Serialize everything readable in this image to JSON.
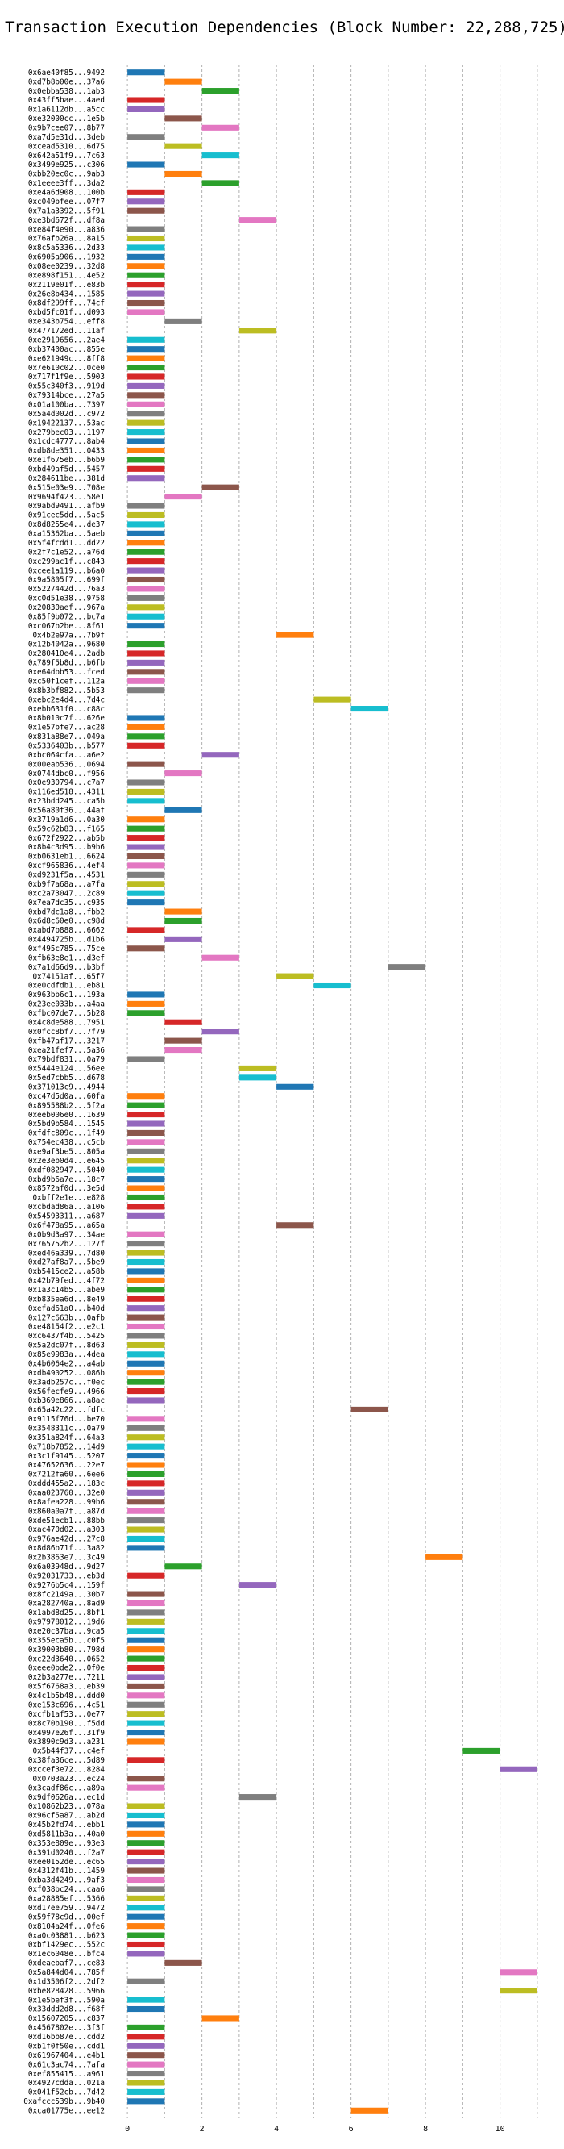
{
  "chart_data": {
    "type": "bar",
    "orientation": "horizontal",
    "title": "Transaction Execution Dependencies (Block Number: 22,288,725)",
    "xlabel": "",
    "ylabel": "",
    "xlim": [
      -0.5,
      11.5
    ],
    "xticks": [
      0,
      2,
      4,
      6,
      8,
      10
    ],
    "grid": true,
    "palette": [
      "#1f77b4",
      "#ff7f0e",
      "#2ca02c",
      "#d62728",
      "#9467bd",
      "#8c564b",
      "#e377c2",
      "#7f7f7f",
      "#bcbd22",
      "#17becf"
    ],
    "bar_width": 1,
    "transactions": [
      {
        "tx": "0x6ae40f85...9492",
        "start": 0
      },
      {
        "tx": "0xd7b8b00e...37a6",
        "start": 1
      },
      {
        "tx": "0x0ebba538...1ab3",
        "start": 2
      },
      {
        "tx": "0x43ff5bae...4aed",
        "start": 0
      },
      {
        "tx": "0x1a6112db...a5cc",
        "start": 0
      },
      {
        "tx": "0xe32000cc...1e5b",
        "start": 1
      },
      {
        "tx": "0x9b7cee07...8b77",
        "start": 2
      },
      {
        "tx": "0xa7d5e31d...3deb",
        "start": 0
      },
      {
        "tx": "0xcead5310...6d75",
        "start": 1
      },
      {
        "tx": "0x642a51f9...7c63",
        "start": 2
      },
      {
        "tx": "0x3499e925...c306",
        "start": 0
      },
      {
        "tx": "0xbb20ec0c...9ab3",
        "start": 1
      },
      {
        "tx": "0x1eeee3ff...3da2",
        "start": 2
      },
      {
        "tx": "0xe4a6d908...100b",
        "start": 0
      },
      {
        "tx": "0xc049bfee...07f7",
        "start": 0
      },
      {
        "tx": "0x7a1a3392...5f91",
        "start": 0
      },
      {
        "tx": "0xe3bd672f...df8a",
        "start": 3
      },
      {
        "tx": "0xe84f4e90...a836",
        "start": 0
      },
      {
        "tx": "0x76afb26a...8a15",
        "start": 0
      },
      {
        "tx": "0x8c5a5336...2d33",
        "start": 0
      },
      {
        "tx": "0x6905a906...1932",
        "start": 0
      },
      {
        "tx": "0x08ee0239...32d8",
        "start": 0
      },
      {
        "tx": "0xe898f151...4e52",
        "start": 0
      },
      {
        "tx": "0x2119e01f...e83b",
        "start": 0
      },
      {
        "tx": "0x26e8b434...1585",
        "start": 0
      },
      {
        "tx": "0x8df299ff...74cf",
        "start": 0
      },
      {
        "tx": "0xbd5fc01f...d093",
        "start": 0
      },
      {
        "tx": "0xe343b754...eff8",
        "start": 1
      },
      {
        "tx": "0x477172ed...11af",
        "start": 3
      },
      {
        "tx": "0xe2919656...2ae4",
        "start": 0
      },
      {
        "tx": "0xb37400ac...855e",
        "start": 0
      },
      {
        "tx": "0xe621949c...8ff8",
        "start": 0
      },
      {
        "tx": "0x7e610c02...0ce0",
        "start": 0
      },
      {
        "tx": "0x717f1f9e...5903",
        "start": 0
      },
      {
        "tx": "0x55c340f3...919d",
        "start": 0
      },
      {
        "tx": "0x79314bce...27a5",
        "start": 0
      },
      {
        "tx": "0x01a100ba...7397",
        "start": 0
      },
      {
        "tx": "0x5a4d002d...c972",
        "start": 0
      },
      {
        "tx": "0x19422137...53ac",
        "start": 0
      },
      {
        "tx": "0x279bec03...1197",
        "start": 0
      },
      {
        "tx": "0x1cdc4777...8ab4",
        "start": 0
      },
      {
        "tx": "0xdb8de351...0433",
        "start": 0
      },
      {
        "tx": "0xe1f675eb...b6b9",
        "start": 0
      },
      {
        "tx": "0xbd49af5d...5457",
        "start": 0
      },
      {
        "tx": "0x284611be...381d",
        "start": 0
      },
      {
        "tx": "0x515e03e9...708e",
        "start": 2
      },
      {
        "tx": "0x9694f423...58e1",
        "start": 1
      },
      {
        "tx": "0x9abd9491...afb9",
        "start": 0
      },
      {
        "tx": "0x91cec5dd...5ac5",
        "start": 0
      },
      {
        "tx": "0x8d8255e4...de37",
        "start": 0
      },
      {
        "tx": "0xa15362ba...5aeb",
        "start": 0
      },
      {
        "tx": "0x5f4fcdd1...dd22",
        "start": 0
      },
      {
        "tx": "0x2f7c1e52...a76d",
        "start": 0
      },
      {
        "tx": "0xc299ac1f...c843",
        "start": 0
      },
      {
        "tx": "0xcee1a119...b6a0",
        "start": 0
      },
      {
        "tx": "0x9a5805f7...699f",
        "start": 0
      },
      {
        "tx": "0x5227442d...76a3",
        "start": 0
      },
      {
        "tx": "0xc0d51e38...9758",
        "start": 0
      },
      {
        "tx": "0x20830aef...967a",
        "start": 0
      },
      {
        "tx": "0x85f9b072...bc7a",
        "start": 0
      },
      {
        "tx": "0xc067b2be...8f61",
        "start": 0
      },
      {
        "tx": "0x4b2e97a...7b9f",
        "start": 4
      },
      {
        "tx": "0x12b4042a...9680",
        "start": 0
      },
      {
        "tx": "0x280410e4...2adb",
        "start": 0
      },
      {
        "tx": "0x789f5b8d...b6fb",
        "start": 0
      },
      {
        "tx": "0xe64dbb53...fced",
        "start": 0
      },
      {
        "tx": "0xc50f1cef...112a",
        "start": 0
      },
      {
        "tx": "0x8b3bf882...5b53",
        "start": 0
      },
      {
        "tx": "0xebc2e4d4...7d4c",
        "start": 5
      },
      {
        "tx": "0xebb631f0...c88c",
        "start": 6
      },
      {
        "tx": "0x8b010c7f...626e",
        "start": 0
      },
      {
        "tx": "0x1e57bfe7...ac28",
        "start": 0
      },
      {
        "tx": "0x831a88e7...049a",
        "start": 0
      },
      {
        "tx": "0x5336403b...b577",
        "start": 0
      },
      {
        "tx": "0xbc064cfa...a6e2",
        "start": 2
      },
      {
        "tx": "0x00eab536...0694",
        "start": 0
      },
      {
        "tx": "0x0744dbc0...f956",
        "start": 1
      },
      {
        "tx": "0x0e930794...c7a7",
        "start": 0
      },
      {
        "tx": "0x116ed518...4311",
        "start": 0
      },
      {
        "tx": "0x23bdd245...ca5b",
        "start": 0
      },
      {
        "tx": "0x56a80f36...44af",
        "start": 1
      },
      {
        "tx": "0x3719a1d6...0a30",
        "start": 0
      },
      {
        "tx": "0x59c62b83...f165",
        "start": 0
      },
      {
        "tx": "0x672f2922...ab5b",
        "start": 0
      },
      {
        "tx": "0x8b4c3d95...b9b6",
        "start": 0
      },
      {
        "tx": "0xb0631eb1...6624",
        "start": 0
      },
      {
        "tx": "0xcf965836...4ef4",
        "start": 0
      },
      {
        "tx": "0xd9231f5a...4531",
        "start": 0
      },
      {
        "tx": "0xb9f7a68a...a7fa",
        "start": 0
      },
      {
        "tx": "0xc2a73047...2c89",
        "start": 0
      },
      {
        "tx": "0x7ea7dc35...c935",
        "start": 0
      },
      {
        "tx": "0xbd7dc1a8...fbb2",
        "start": 1
      },
      {
        "tx": "0x6d8c60e0...c98d",
        "start": 1
      },
      {
        "tx": "0xabd7b888...6662",
        "start": 0
      },
      {
        "tx": "0x4494725b...d1b6",
        "start": 1
      },
      {
        "tx": "0xf495c785...75ce",
        "start": 0
      },
      {
        "tx": "0xfb63e8e1...d3ef",
        "start": 2
      },
      {
        "tx": "0x7a1d66d9...b3bf",
        "start": 7
      },
      {
        "tx": "0x74151af...65f7",
        "start": 4
      },
      {
        "tx": "0xe0cdfdb1...eb81",
        "start": 5
      },
      {
        "tx": "0x963bb6c1...193a",
        "start": 0
      },
      {
        "tx": "0x23ee033b...a4aa",
        "start": 0
      },
      {
        "tx": "0xfbc07de7...5b28",
        "start": 0
      },
      {
        "tx": "0x4c8de588...7951",
        "start": 1
      },
      {
        "tx": "0x0fcc8bf7...7f79",
        "start": 2
      },
      {
        "tx": "0xfb47af17...3217",
        "start": 1
      },
      {
        "tx": "0xea21fef7...5a36",
        "start": 1
      },
      {
        "tx": "0x79bdf831...0a79",
        "start": 0
      },
      {
        "tx": "0x5444e124...56ee",
        "start": 3
      },
      {
        "tx": "0x5ed7cbb5...d678",
        "start": 3
      },
      {
        "tx": "0x371013c9...4944",
        "start": 4
      },
      {
        "tx": "0xc47d5d0a...60fa",
        "start": 0
      },
      {
        "tx": "0x895588b2...5f2a",
        "start": 0
      },
      {
        "tx": "0xeeb006e0...1639",
        "start": 0
      },
      {
        "tx": "0x5bd9b584...1545",
        "start": 0
      },
      {
        "tx": "0xfdfc809c...1f49",
        "start": 0
      },
      {
        "tx": "0x754ec438...c5cb",
        "start": 0
      },
      {
        "tx": "0xe9af3be5...805a",
        "start": 0
      },
      {
        "tx": "0x2e3eb0d4...e645",
        "start": 0
      },
      {
        "tx": "0xdf082947...5040",
        "start": 0
      },
      {
        "tx": "0xbd9b6a7e...18c7",
        "start": 0
      },
      {
        "tx": "0x8572af0d...3e5d",
        "start": 0
      },
      {
        "tx": "0xbff2e1e...e828",
        "start": 0
      },
      {
        "tx": "0xcbdad86a...a106",
        "start": 0
      },
      {
        "tx": "0x54593311...a687",
        "start": 0
      },
      {
        "tx": "0x6f478a95...a65a",
        "start": 4
      },
      {
        "tx": "0x0b9d3a97...34ae",
        "start": 0
      },
      {
        "tx": "0x765752b2...127f",
        "start": 0
      },
      {
        "tx": "0xed46a339...7d80",
        "start": 0
      },
      {
        "tx": "0xd27af8a7...5be9",
        "start": 0
      },
      {
        "tx": "0xb5415ce2...a58b",
        "start": 0
      },
      {
        "tx": "0x42b79fed...4f72",
        "start": 0
      },
      {
        "tx": "0x1a3c14b5...abe9",
        "start": 0
      },
      {
        "tx": "0xb835ea6d...8e49",
        "start": 0
      },
      {
        "tx": "0xefad61a0...b40d",
        "start": 0
      },
      {
        "tx": "0x127c663b...0afb",
        "start": 0
      },
      {
        "tx": "0xe48154f2...e2c1",
        "start": 0
      },
      {
        "tx": "0xc6437f4b...5425",
        "start": 0
      },
      {
        "tx": "0x5a2dc07f...8d63",
        "start": 0
      },
      {
        "tx": "0x85e9983a...4dea",
        "start": 0
      },
      {
        "tx": "0x4b6064e2...a4ab",
        "start": 0
      },
      {
        "tx": "0xdb490252...086b",
        "start": 0
      },
      {
        "tx": "0x3adb257c...f0ec",
        "start": 0
      },
      {
        "tx": "0x56fecfe9...4966",
        "start": 0
      },
      {
        "tx": "0xb369e866...a8ac",
        "start": 0
      },
      {
        "tx": "0x65a42c22...fdfc",
        "start": 6
      },
      {
        "tx": "0x9115f76d...be70",
        "start": 0
      },
      {
        "tx": "0x3548311c...0a79",
        "start": 0
      },
      {
        "tx": "0x351a824f...64a3",
        "start": 0
      },
      {
        "tx": "0x718b7852...14d9",
        "start": 0
      },
      {
        "tx": "0x3c1f9145...5207",
        "start": 0
      },
      {
        "tx": "0x47652636...22e7",
        "start": 0
      },
      {
        "tx": "0x7212fa60...6ee6",
        "start": 0
      },
      {
        "tx": "0xddd455a2...183c",
        "start": 0
      },
      {
        "tx": "0xaa023760...32e0",
        "start": 0
      },
      {
        "tx": "0x8afea228...99b6",
        "start": 0
      },
      {
        "tx": "0x860a0a7f...a87d",
        "start": 0
      },
      {
        "tx": "0xde51ecb1...88bb",
        "start": 0
      },
      {
        "tx": "0xac470d02...a303",
        "start": 0
      },
      {
        "tx": "0x976ae42d...27c8",
        "start": 0
      },
      {
        "tx": "0x8d86b71f...3a82",
        "start": 0
      },
      {
        "tx": "0x2b3863e7...3c49",
        "start": 8
      },
      {
        "tx": "0x6a03948d...9d27",
        "start": 1
      },
      {
        "tx": "0x92031733...eb3d",
        "start": 0
      },
      {
        "tx": "0x9276b5c4...159f",
        "start": 3
      },
      {
        "tx": "0x8fc2149a...30b7",
        "start": 0
      },
      {
        "tx": "0xa282740a...8ad9",
        "start": 0
      },
      {
        "tx": "0x1abd8d25...8bf1",
        "start": 0
      },
      {
        "tx": "0x97978012...19d6",
        "start": 0
      },
      {
        "tx": "0xe20c37ba...9ca5",
        "start": 0
      },
      {
        "tx": "0x355eca5b...c0f5",
        "start": 0
      },
      {
        "tx": "0x39003b80...798d",
        "start": 0
      },
      {
        "tx": "0xc22d3640...0652",
        "start": 0
      },
      {
        "tx": "0xeee0bde2...0f0e",
        "start": 0
      },
      {
        "tx": "0x2b3a277e...7211",
        "start": 0
      },
      {
        "tx": "0x5f6768a3...eb39",
        "start": 0
      },
      {
        "tx": "0x4c1b5b48...ddd0",
        "start": 0
      },
      {
        "tx": "0xe153c696...4c51",
        "start": 0
      },
      {
        "tx": "0xcfb1af53...0e77",
        "start": 0
      },
      {
        "tx": "0x8c70b190...f5dd",
        "start": 0
      },
      {
        "tx": "0x4997e26f...31f9",
        "start": 0
      },
      {
        "tx": "0x3890c9d3...a231",
        "start": 0
      },
      {
        "tx": "0x5b44f37...c4ef",
        "start": 9
      },
      {
        "tx": "0x38fa36ce...5d89",
        "start": 0
      },
      {
        "tx": "0xccef3e72...8284",
        "start": 10
      },
      {
        "tx": "0x0703a23...ec24",
        "start": 0
      },
      {
        "tx": "0x3cadf86c...a89a",
        "start": 0
      },
      {
        "tx": "0x9df0626a...ec1d",
        "start": 3
      },
      {
        "tx": "0x10862b23...078a",
        "start": 0
      },
      {
        "tx": "0x96cf5a87...ab2d",
        "start": 0
      },
      {
        "tx": "0x45b2fd74...ebb1",
        "start": 0
      },
      {
        "tx": "0xd5811b3a...40a0",
        "start": 0
      },
      {
        "tx": "0x353e809e...93e3",
        "start": 0
      },
      {
        "tx": "0x391d0240...f2a7",
        "start": 0
      },
      {
        "tx": "0xee0152de...ec65",
        "start": 0
      },
      {
        "tx": "0x4312f41b...1459",
        "start": 0
      },
      {
        "tx": "0xba3d4249...9af3",
        "start": 0
      },
      {
        "tx": "0xf038bc24...caa6",
        "start": 0
      },
      {
        "tx": "0xa28885ef...5366",
        "start": 0
      },
      {
        "tx": "0xd17ee759...9472",
        "start": 0
      },
      {
        "tx": "0x59f78c9d...00ef",
        "start": 0
      },
      {
        "tx": "0x8104a24f...0fe6",
        "start": 0
      },
      {
        "tx": "0xa0c03881...b623",
        "start": 0
      },
      {
        "tx": "0xbf1429ec...552c",
        "start": 0
      },
      {
        "tx": "0x1ec6048e...bfc4",
        "start": 0
      },
      {
        "tx": "0xdeaebaf7...ce83",
        "start": 1
      },
      {
        "tx": "0x5a844d04...785f",
        "start": 10
      },
      {
        "tx": "0x1d3506f2...2df2",
        "start": 0
      },
      {
        "tx": "0xbe828428...5966",
        "start": 10
      },
      {
        "tx": "0x1e5bef3f...590a",
        "start": 0
      },
      {
        "tx": "0x33ddd2d8...f68f",
        "start": 0
      },
      {
        "tx": "0x15607205...c837",
        "start": 2
      },
      {
        "tx": "0x4567802e...3f3f",
        "start": 0
      },
      {
        "tx": "0xd16bb87e...cdd2",
        "start": 0
      },
      {
        "tx": "0xb1f0f50e...cdd1",
        "start": 0
      },
      {
        "tx": "0x61967404...e4b1",
        "start": 0
      },
      {
        "tx": "0x61c3ac74...7afa",
        "start": 0
      },
      {
        "tx": "0xef855415...a961",
        "start": 0
      },
      {
        "tx": "0x4927cdda...021a",
        "start": 0
      },
      {
        "tx": "0x041f52cb...7d42",
        "start": 0
      },
      {
        "tx": "0xafccc539b...9b40",
        "start": 0
      },
      {
        "tx": "0xca01775e...ee12",
        "start": 6
      }
    ]
  }
}
